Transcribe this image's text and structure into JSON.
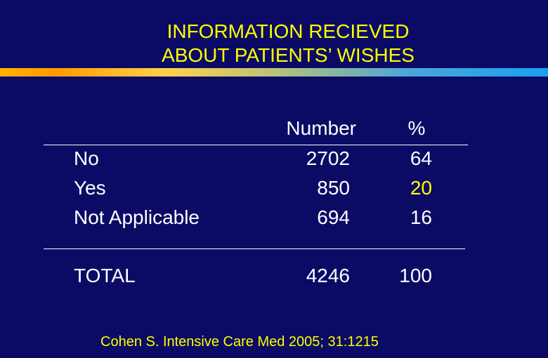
{
  "slide": {
    "title_line1": "INFORMATION RECIEVED",
    "title_line2": "ABOUT PATIENTS’ WISHES",
    "citation": "Cohen S. Intensive Care Med 2005; 31:1215"
  },
  "table": {
    "headers": {
      "number": "Number",
      "percent": "%"
    },
    "rows": [
      {
        "label": "No",
        "number": "2702",
        "percent": "64"
      },
      {
        "label": "Yes",
        "number": "850",
        "percent": "20"
      },
      {
        "label": "Not Applicable",
        "number": "694",
        "percent": "16"
      }
    ],
    "total": {
      "label": "TOTAL",
      "number": "4246",
      "percent": "100"
    }
  },
  "colors": {
    "background": "#0b0b66",
    "title": "#ffff00",
    "text": "#ffffff",
    "highlight": "#ffff00"
  }
}
